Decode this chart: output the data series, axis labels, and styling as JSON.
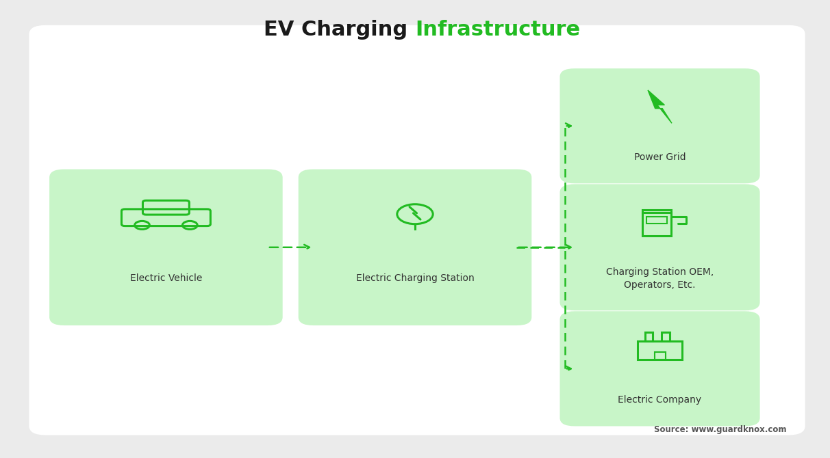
{
  "title_black": "EV Charging ",
  "title_green": "Infrastructure",
  "title_fontsize": 22,
  "source_text": "Source: www.guardknox.com",
  "bg_color": "#ebebeb",
  "panel_bg": "#ffffff",
  "box_fill": "#c8f5c8",
  "green_color": "#22bb22",
  "text_color": "#333333",
  "labels": {
    "ev": "Electric Vehicle",
    "ecs": "Electric Charging Station",
    "pg": "Power Grid",
    "oem": "Charging Station OEM,\nOperators, Etc.",
    "ec": "Electric Company"
  },
  "boxes": {
    "ev": [
      0.2,
      0.46,
      0.245,
      0.305
    ],
    "ecs": [
      0.5,
      0.46,
      0.245,
      0.305
    ],
    "pg": [
      0.795,
      0.725,
      0.205,
      0.215
    ],
    "oem": [
      0.795,
      0.46,
      0.205,
      0.24
    ],
    "ec": [
      0.795,
      0.195,
      0.205,
      0.215
    ]
  }
}
